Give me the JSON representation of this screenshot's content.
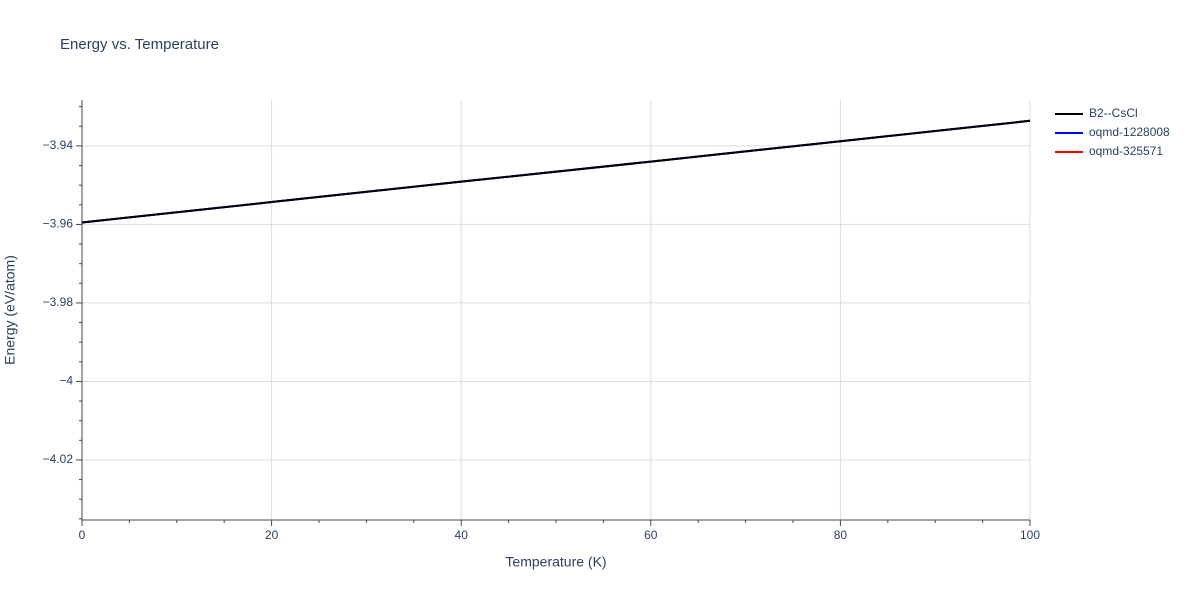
{
  "chart_data": {
    "type": "line",
    "title": "Energy vs. Temperature",
    "x_label": "Temperature (K)",
    "y_label": "Energy (eV/atom)",
    "x": [
      0,
      20,
      40,
      60,
      80,
      100
    ],
    "series": [
      {
        "name": "B2--CsCl",
        "color": "#000000",
        "values": [
          -3.9595,
          -3.9543,
          -3.9491,
          -3.944,
          -3.9388,
          -3.9336
        ]
      },
      {
        "name": "oqmd-1228008",
        "color": "#0000ff",
        "values": [
          -3.9595,
          -3.9543,
          -3.9491,
          -3.944,
          -3.9388,
          -3.9336
        ]
      },
      {
        "name": "oqmd-325571",
        "color": "#ff0000",
        "values": [
          -3.9595,
          -3.9543,
          -3.9491,
          -3.944,
          -3.9388,
          -3.9336
        ]
      }
    ],
    "xlim": [
      0,
      100
    ],
    "xticks": [
      0,
      20,
      40,
      60,
      80,
      100
    ],
    "xminorticks": [
      5,
      10,
      15,
      25,
      30,
      35,
      45,
      50,
      55,
      65,
      70,
      75,
      85,
      90,
      95
    ],
    "ylim": [
      -4.0353,
      -3.9283
    ],
    "yticks": [
      {
        "value": -4.02,
        "label": "−4.02"
      },
      {
        "value": -4,
        "label": "−4"
      },
      {
        "value": -3.98,
        "label": "−3.98"
      },
      {
        "value": -3.96,
        "label": "−3.96"
      },
      {
        "value": -3.94,
        "label": "−3.94"
      }
    ],
    "yminorticks": [
      -4.035,
      -4.03,
      -4.025,
      -4.015,
      -4.01,
      -4.005,
      -3.995,
      -3.99,
      -3.985,
      -3.975,
      -3.97,
      -3.965,
      -3.955,
      -3.95,
      -3.945,
      -3.935,
      -3.93
    ],
    "grid": true,
    "legend": "right"
  }
}
